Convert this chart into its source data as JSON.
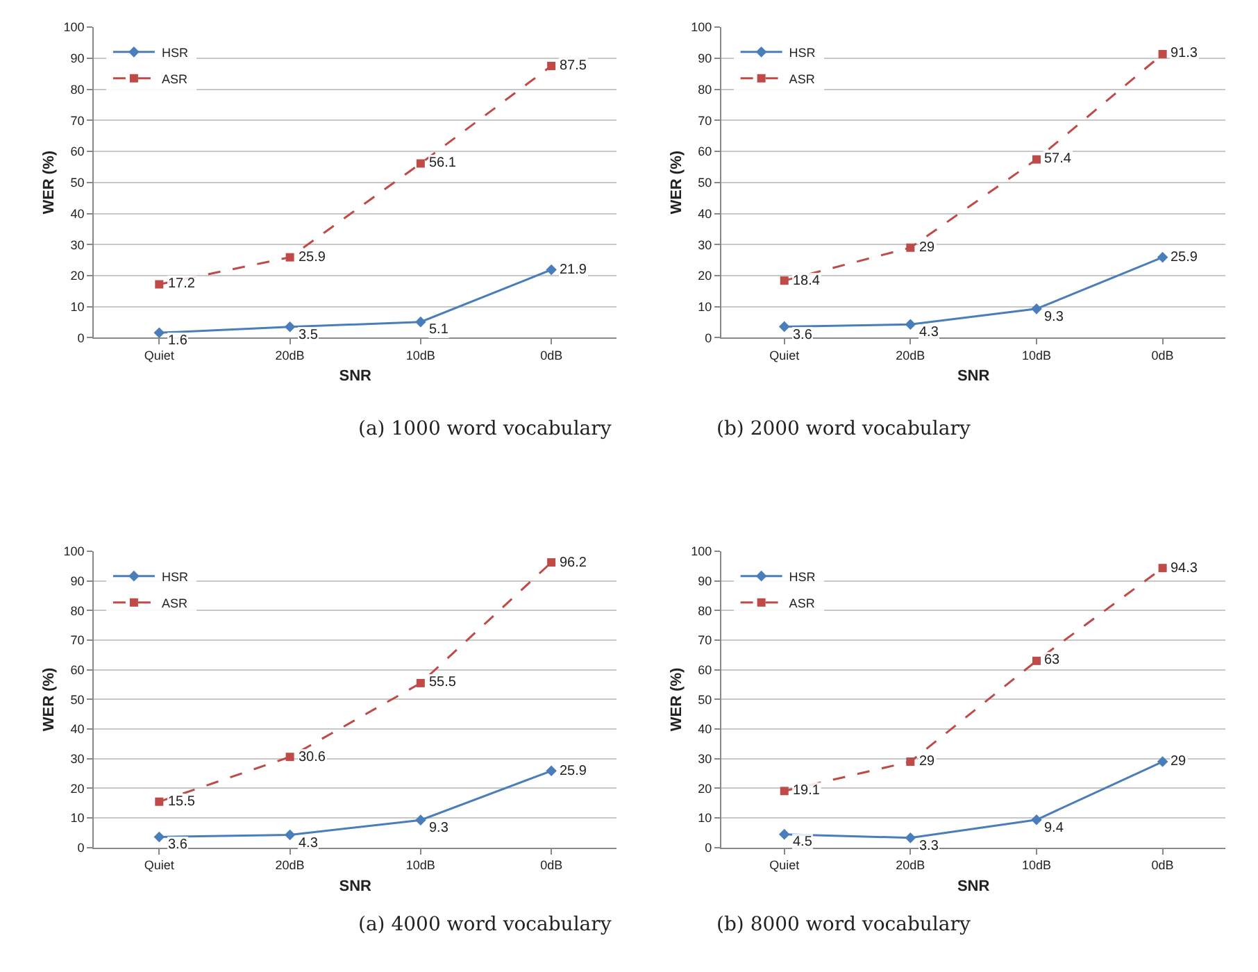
{
  "chart_data": [
    {
      "type": "line",
      "title": "(a) 1000 word vocabulary",
      "xlabel": "SNR",
      "ylabel": "WER (%)",
      "categories": [
        "Quiet",
        "20dB",
        "10dB",
        "0dB"
      ],
      "ylim": [
        0,
        100
      ],
      "yticks": [
        0,
        10,
        20,
        30,
        40,
        50,
        60,
        70,
        80,
        90,
        100
      ],
      "grid": "y",
      "legend": "top left",
      "data_labels": true,
      "series": [
        {
          "name": "HSR",
          "color": "#4a7ebb",
          "marker": "diamond",
          "line_style": "solid",
          "values": [
            1.6,
            3.5,
            5.1,
            21.9
          ]
        },
        {
          "name": "ASR",
          "color": "#be4b48",
          "marker": "square",
          "line_style": "dashed",
          "values": [
            17.2,
            25.9,
            56.1,
            87.5
          ]
        }
      ]
    },
    {
      "type": "line",
      "title": "(b) 2000 word vocabulary",
      "xlabel": "SNR",
      "ylabel": "WER (%)",
      "categories": [
        "Quiet",
        "20dB",
        "10dB",
        "0dB"
      ],
      "ylim": [
        0,
        100
      ],
      "yticks": [
        0,
        10,
        20,
        30,
        40,
        50,
        60,
        70,
        80,
        90,
        100
      ],
      "grid": "y",
      "legend": "top left",
      "data_labels": true,
      "series": [
        {
          "name": "HSR",
          "color": "#4a7ebb",
          "marker": "diamond",
          "line_style": "solid",
          "values": [
            3.6,
            4.3,
            9.3,
            25.9
          ]
        },
        {
          "name": "ASR",
          "color": "#be4b48",
          "marker": "square",
          "line_style": "dashed",
          "values": [
            18.4,
            29,
            57.4,
            91.3
          ]
        }
      ]
    },
    {
      "type": "line",
      "title": "(a) 4000 word vocabulary",
      "xlabel": "SNR",
      "ylabel": "WER (%)",
      "categories": [
        "Quiet",
        "20dB",
        "10dB",
        "0dB"
      ],
      "ylim": [
        0,
        100
      ],
      "yticks": [
        0,
        10,
        20,
        30,
        40,
        50,
        60,
        70,
        80,
        90,
        100
      ],
      "grid": "y",
      "legend": "top left",
      "data_labels": true,
      "series": [
        {
          "name": "HSR",
          "color": "#4a7ebb",
          "marker": "diamond",
          "line_style": "solid",
          "values": [
            3.6,
            4.3,
            9.3,
            25.9
          ]
        },
        {
          "name": "ASR",
          "color": "#be4b48",
          "marker": "square",
          "line_style": "dashed",
          "values": [
            15.5,
            30.6,
            55.5,
            96.2
          ]
        }
      ]
    },
    {
      "type": "line",
      "title": "(b) 8000 word vocabulary",
      "xlabel": "SNR",
      "ylabel": "WER (%)",
      "categories": [
        "Quiet",
        "20dB",
        "10dB",
        "0dB"
      ],
      "ylim": [
        0,
        100
      ],
      "yticks": [
        0,
        10,
        20,
        30,
        40,
        50,
        60,
        70,
        80,
        90,
        100
      ],
      "grid": "y",
      "legend": "top left",
      "data_labels": true,
      "series": [
        {
          "name": "HSR",
          "color": "#4a7ebb",
          "marker": "diamond",
          "line_style": "solid",
          "values": [
            4.5,
            3.3,
            9.4,
            29
          ]
        },
        {
          "name": "ASR",
          "color": "#be4b48",
          "marker": "square",
          "line_style": "dashed",
          "values": [
            19.1,
            29,
            63,
            94.3
          ]
        }
      ]
    }
  ]
}
